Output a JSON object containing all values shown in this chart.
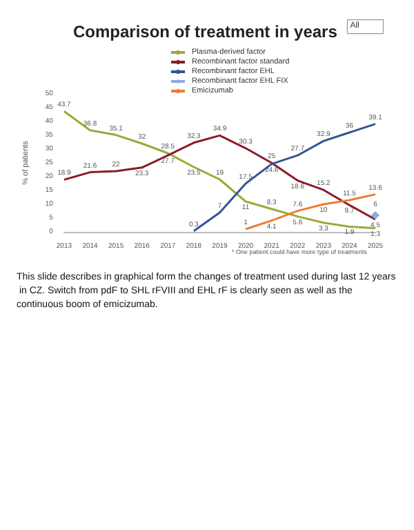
{
  "chart_data": {
    "type": "line",
    "title": "Comparison of treatment in years",
    "ylabel": "% of patients",
    "categories": [
      "2013",
      "2014",
      "2015",
      "2016",
      "2017",
      "2018",
      "2019",
      "2020",
      "2021",
      "2022",
      "2023",
      "2024",
      "2025"
    ],
    "series": [
      {
        "name": "Plasma-derived factor",
        "color": "#9aaa3a",
        "values": [
          43.7,
          36.8,
          35.1,
          32.0,
          28.5,
          23.5,
          19.0,
          11.0,
          8.3,
          5.6,
          3.3,
          1.9,
          1.3
        ]
      },
      {
        "name": "Recombinant factor standard",
        "color": "#8b1a2b",
        "values": [
          18.9,
          21.6,
          22.0,
          23.3,
          27.7,
          32.3,
          34.9,
          30.3,
          25.0,
          18.6,
          15.2,
          9.7,
          4.5
        ]
      },
      {
        "name": "Recombinant factor EHL",
        "color": "#2f5597",
        "values": [
          null,
          null,
          null,
          null,
          null,
          0.3,
          7.0,
          17.5,
          24.6,
          27.7,
          32.9,
          36.0,
          39.1
        ]
      },
      {
        "name": "Recombinant factor EHL FIX",
        "color": "#8ea9db",
        "marker": "diamond",
        "values": [
          null,
          null,
          null,
          null,
          null,
          null,
          null,
          null,
          null,
          null,
          null,
          null,
          6.0
        ]
      },
      {
        "name": "Emicizumab",
        "color": "#ed7d31",
        "values": [
          null,
          null,
          null,
          null,
          null,
          null,
          null,
          1.0,
          4.1,
          7.6,
          10.0,
          11.5,
          13.6
        ]
      }
    ],
    "ylim": [
      0,
      50
    ],
    "yticks": [
      0,
      5,
      10,
      15,
      20,
      25,
      30,
      35,
      40,
      45,
      50
    ],
    "data_labels": true,
    "legend": "top",
    "marker": "none",
    "annotations": [
      "All",
      "* One patient could have more type of treatments",
      "This slide describes in graphical form the changes of treatment used during last 12 years in CZ. Switch from pdF to SHL rFVIII and EHL rF is clearly seen as well as the continuous boom of emicizumab."
    ]
  }
}
